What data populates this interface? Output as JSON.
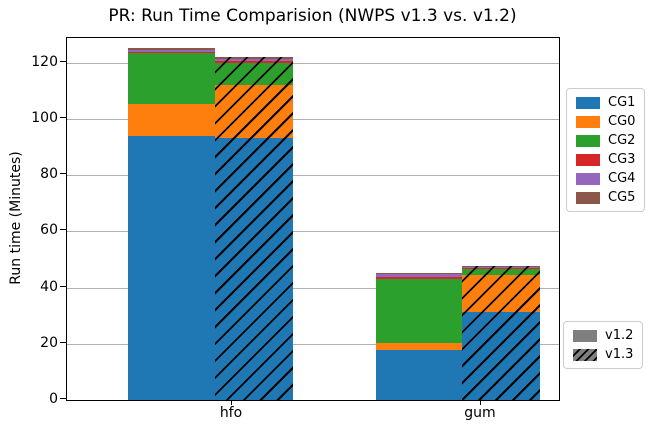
{
  "chart_data": {
    "type": "bar",
    "stacked": true,
    "title": "PR: Run Time Comparision (NWPS v1.3 vs. v1.2)",
    "ylabel": "Run time (Minutes)",
    "xlabel": "",
    "categories": [
      "hfo",
      "gum"
    ],
    "yticks": [
      0,
      20,
      40,
      60,
      80,
      100,
      120
    ],
    "ylim": [
      0,
      128.8
    ],
    "grid": "horizontal",
    "stack_order": [
      "CG1",
      "CG0",
      "CG2",
      "CG3",
      "CG4",
      "CG5"
    ],
    "colors": {
      "CG1": "#1f77b4",
      "CG0": "#ff7f0e",
      "CG2": "#2ca02c",
      "CG3": "#d62728",
      "CG4": "#9467bd",
      "CG5": "#8c564b"
    },
    "groups": [
      {
        "category": "hfo",
        "bars": [
          {
            "version": "v1.2",
            "hatched": false,
            "total": 125.2,
            "values": {
              "CG1": 94.0,
              "CG0": 11.2,
              "CG2": 18.3,
              "CG3": 0.5,
              "CG4": 0.6,
              "CG5": 0.6
            }
          },
          {
            "version": "v1.3",
            "hatched": true,
            "total": 122.0,
            "values": {
              "CG1": 93.4,
              "CG0": 18.6,
              "CG2": 7.8,
              "CG3": 0.7,
              "CG4": 0.7,
              "CG5": 0.8
            }
          }
        ]
      },
      {
        "category": "gum",
        "bars": [
          {
            "version": "v1.2",
            "hatched": false,
            "total": 45.1,
            "values": {
              "CG1": 17.7,
              "CG0": 2.5,
              "CG2": 22.8,
              "CG3": 0.6,
              "CG4": 1.1,
              "CG5": 0.4
            }
          },
          {
            "version": "v1.3",
            "hatched": true,
            "total": 47.7,
            "values": {
              "CG1": 31.4,
              "CG0": 13.0,
              "CG2": 2.4,
              "CG3": 0.3,
              "CG4": 0.4,
              "CG5": 0.2
            }
          }
        ]
      }
    ],
    "series_legend": {
      "position": "upper-right-outside",
      "entries": [
        "CG1",
        "CG0",
        "CG2",
        "CG3",
        "CG4",
        "CG5"
      ]
    },
    "version_legend": {
      "position": "lower-right-outside",
      "swatch_color": "#7f7f7f",
      "entries": [
        {
          "label": "v1.2",
          "style": "solid"
        },
        {
          "label": "v1.3",
          "style": "hatched"
        }
      ]
    }
  }
}
